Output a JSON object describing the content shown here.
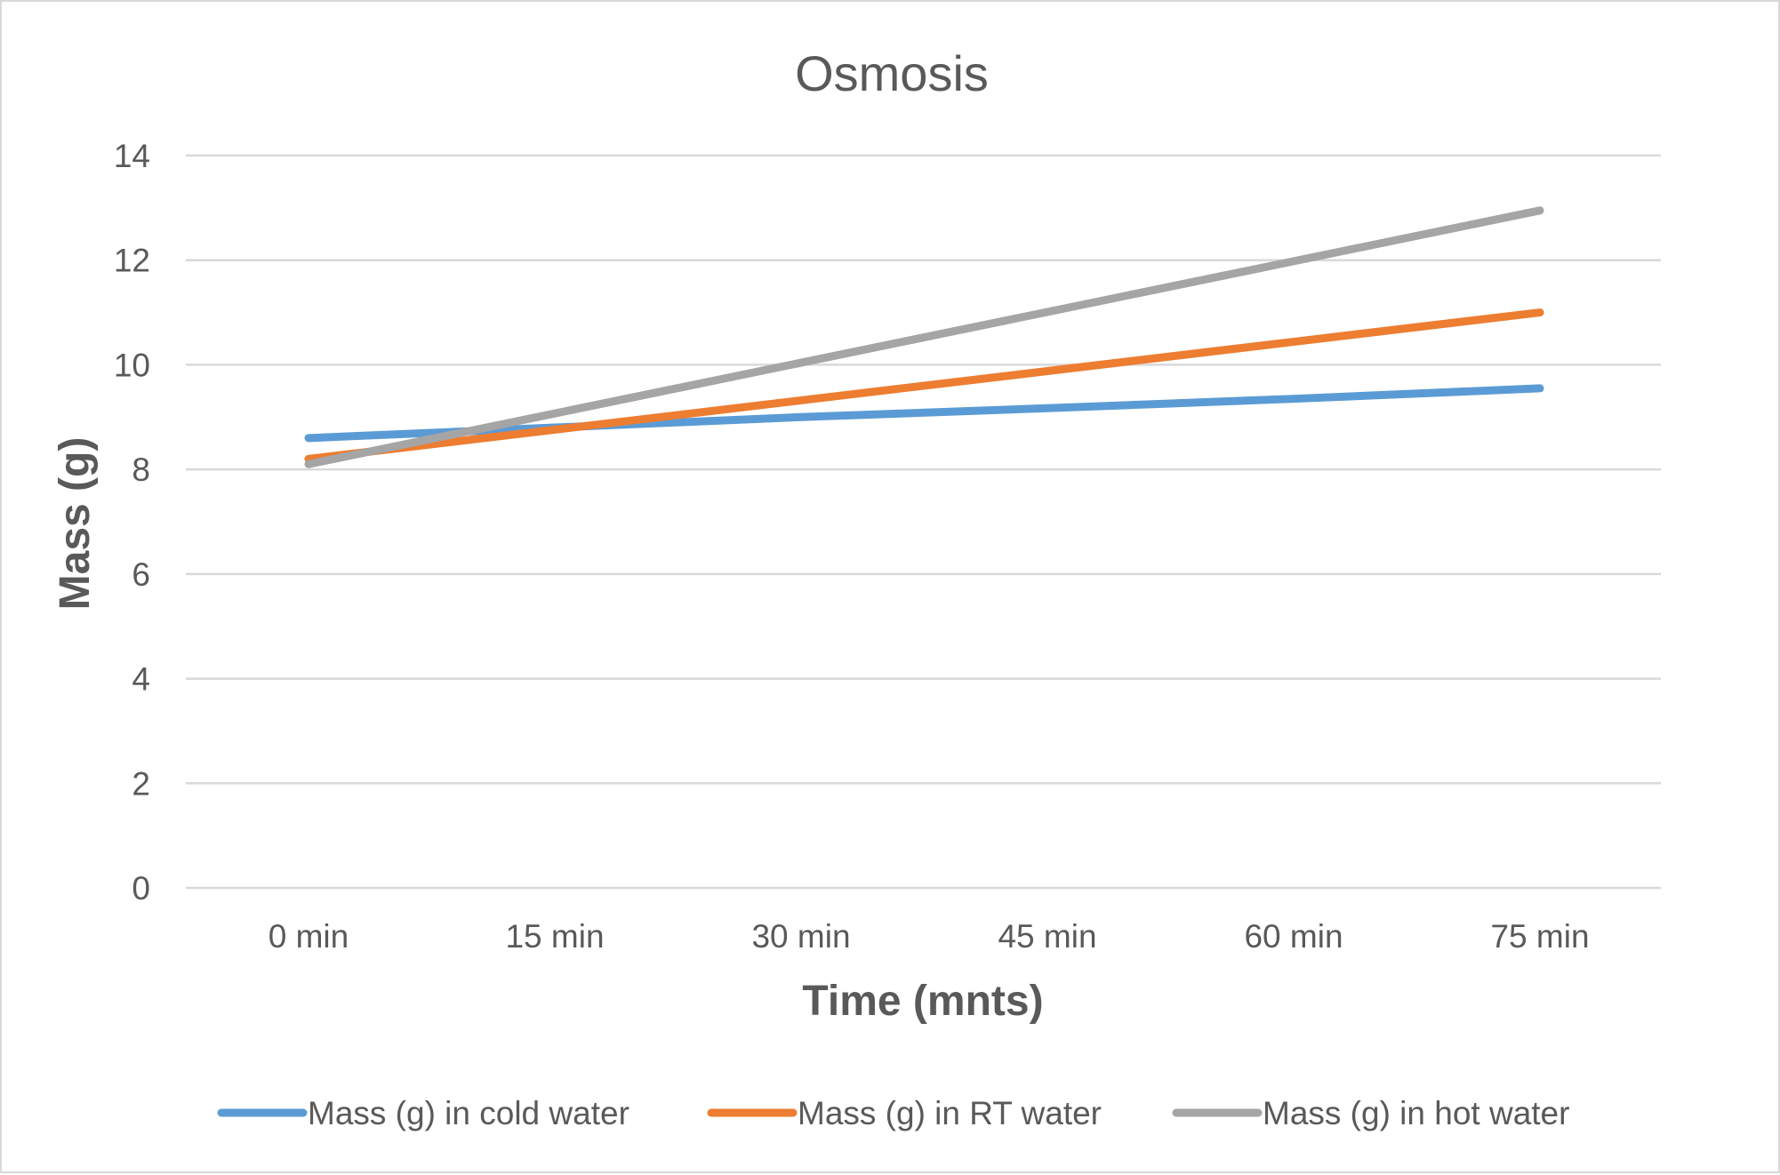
{
  "chart_data": {
    "type": "line",
    "title": "Osmosis",
    "xlabel": "Time (mnts)",
    "ylabel": "Mass (g)",
    "categories": [
      "0 min",
      "15 min",
      "30 min",
      "45 min",
      "60 min",
      "75 min"
    ],
    "ylim": [
      0,
      14
    ],
    "yticks": [
      0,
      2,
      4,
      6,
      8,
      10,
      12,
      14
    ],
    "grid": true,
    "legend_position": "bottom",
    "series": [
      {
        "name": "Mass (g) in cold water",
        "color": "#5b9bd5",
        "values": [
          8.6,
          8.8,
          9.0,
          9.17,
          9.35,
          9.55
        ]
      },
      {
        "name": "Mass (g) in RT water",
        "color": "#ed7d31",
        "values": [
          8.2,
          8.76,
          9.32,
          9.88,
          10.44,
          11.0
        ]
      },
      {
        "name": "Mass (g) in hot water",
        "color": "#a5a5a5",
        "values": [
          8.1,
          9.07,
          10.04,
          11.01,
          11.98,
          12.95
        ]
      }
    ]
  }
}
